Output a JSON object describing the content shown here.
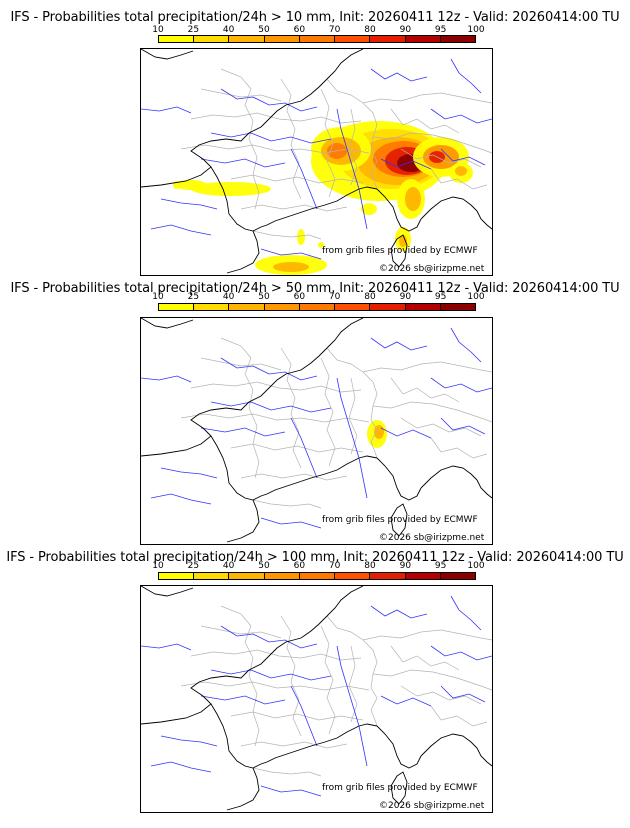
{
  "panels": [
    {
      "title": "IFS - Probabilities total precipitation/24h > 10 mm, Init: 20260411 12z - Valid: 20260414:00 TU",
      "threshold_mm": 10
    },
    {
      "title": "IFS - Probabilities total precipitation/24h > 50 mm, Init: 20260411 12z - Valid: 20260414:00 TU",
      "threshold_mm": 50
    },
    {
      "title": "IFS - Probabilities total precipitation/24h > 100 mm, Init: 20260411 12z - Valid: 20260414:00 TU",
      "threshold_mm": 100
    }
  ],
  "legend": {
    "ticks": [
      "10",
      "25",
      "40",
      "50",
      "60",
      "70",
      "80",
      "90",
      "95",
      "100"
    ],
    "colors": [
      "#ffff00",
      "#ffdc00",
      "#ffb400",
      "#ff9600",
      "#ff7800",
      "#ff5000",
      "#e61e00",
      "#b40000",
      "#8c0000",
      "#640000"
    ]
  },
  "credits": {
    "source": "from grib files provided by ECMWF",
    "copyright": "©2026 sb@irizpme.net"
  },
  "colors": {
    "coast": "#000000",
    "borders": "#b4b4b4",
    "rivers": "#3232ff"
  }
}
